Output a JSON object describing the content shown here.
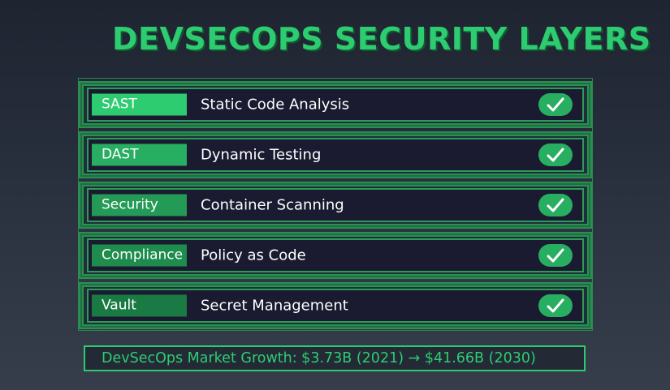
{
  "title": "DEVSECOPS SECURITY LAYERS",
  "layers": [
    {
      "tag": "SAST",
      "description": "Static Code Analysis",
      "tag_color": "#2ecc71",
      "check_icon": "checkmark-icon"
    },
    {
      "tag": "DAST",
      "description": "Dynamic Testing",
      "tag_color": "#27ae60",
      "check_icon": "checkmark-icon"
    },
    {
      "tag": "Security",
      "description": "Container Scanning",
      "tag_color": "#239a55",
      "check_icon": "checkmark-icon"
    },
    {
      "tag": "Compliance",
      "description": "Policy as Code",
      "tag_color": "#1e8c4c",
      "check_icon": "checkmark-icon"
    },
    {
      "tag": "Vault",
      "description": "Secret Management",
      "tag_color": "#1a7a43",
      "check_icon": "checkmark-icon"
    }
  ],
  "footer": "DevSecOps Market Growth: $3.73B (2021) → $41.66B (2030)",
  "colors": {
    "accent": "#2ecc71",
    "row_background": "#1a1a30"
  }
}
